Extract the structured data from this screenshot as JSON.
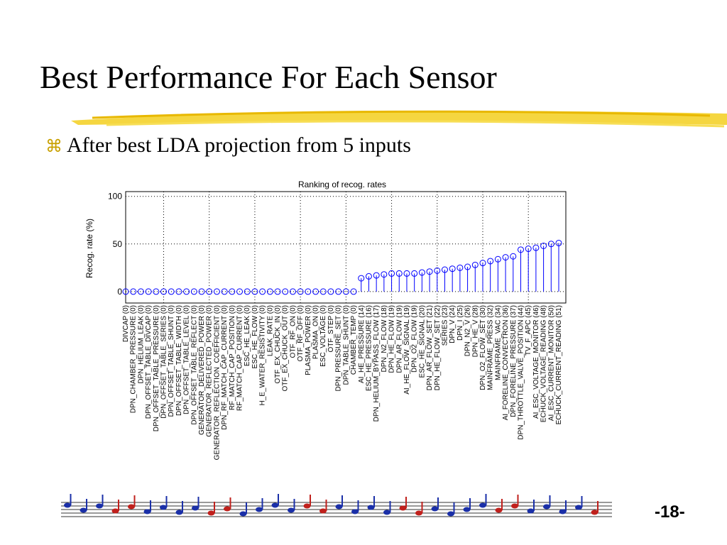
{
  "header": {
    "title": "Best Performance For Each Sensor"
  },
  "bullet": "After best LDA projection from 5 inputs",
  "page_number": "-18-",
  "chart_data": {
    "type": "stem",
    "title": "Ranking of recog. rates",
    "y_label": "Recog. rate (%)",
    "color": "#0000ff",
    "grid": true,
    "ylim": [
      -12,
      105
    ],
    "yticks": [
      0,
      50,
      100
    ],
    "categories": [
      "DIVCAP (0)",
      "DPN_CHAMBER_PRESSURE (0)",
      "DPN_HELIUM_LEAK (0)",
      "DPN_OFFSET_TABLE_DIVCAP (0)",
      "DPN_OFFSET_TABLE_PRESSURE (0)",
      "DPN_OFFSET_TABLE_SERIES (0)",
      "DPN_OFFSET_TABLE_SHUNT (0)",
      "DPN_OFFSET_TABLE_WIDTH (0)",
      "DPN_OFFSET_TABLE_LEVEL (0)",
      "DPN_OFFSET_TABLE_REFLECT (0)",
      "GENERATOR_DELIVERED_POWER (0)",
      "GENERATOR_REFLECTED_POWER (0)",
      "GENERATOR_REFLECTION_COEFFICIENT (0)",
      "DPN_RF_MATCH_CAP_CURRENT (0)",
      "RF_MATCH_CAP_POSITION (0)",
      "RF_MATCH_CAP_CURRENT (0)",
      "ESC_HE_LEAK (0)",
      "ESC_HE_FLOW (0)",
      "H_E_WATER_RESISTIVITY (0)",
      "LEAK_RATE (0)",
      "OTF_EX_CHUCK_IN (0)",
      "OTF_EX_CHUCK_OUT (0)",
      "OTF_RF_ON (0)",
      "OTF_RF_OFF (0)",
      "PLASMA_POWER (0)",
      "PLASMA_ON (0)",
      "ESC_VOLTAGE (0)",
      "OTF_STEP (0)",
      "DPN_PRESSURE_SET (0)",
      "DPN_TABLE_SHUNT (0)",
      "CHAMBER_TEMP (0)",
      "AI_HE_PRESSURE (14)",
      "ESC_HE_PRESSURE (16)",
      "DPN_HELIUM_BYPASS_FLOW (17)",
      "DPN_N2_FLOW (18)",
      "DPN_HE_FLOW (19)",
      "DPN_AR_FLOW (19)",
      "AI_HE_FLOW_SIGNAL (19)",
      "DPN_O2_FLOW (19)",
      "ESC_HE_SIGNAL (20)",
      "DPN_AR_FLOW_SET (21)",
      "DPN_HE_FLOW_SET (22)",
      "SERIES (23)",
      "DPN_V (24)",
      "DPN_I (25)",
      "DPN_N2_V (26)",
      "DPN_HE_V (28)",
      "DPN_O2_FLOW_SET (30)",
      "MAINFRAME_PRESS (32)",
      "MAINFRAME_VAC (34)",
      "AI_FORELINE_CONVECTRON (36)",
      "DPN_FORELINE_PRESSURE (37)",
      "DPN_THROTTLE_VALVE_POSITION (44)",
      "TV_F_APC (45)",
      "AI_ESC_VOLTAGE_MONITOR (46)",
      "ECHUCK_VOLTAGE_READING (48)",
      "AI_ESC_CURRENT_MONITOR (50)",
      "ECHUCK_CURRENT_READING (51)"
    ],
    "values": [
      0,
      0,
      0,
      0,
      0,
      0,
      0,
      0,
      0,
      0,
      0,
      0,
      0,
      0,
      0,
      0,
      0,
      0,
      0,
      0,
      0,
      0,
      0,
      0,
      0,
      0,
      0,
      0,
      0,
      0,
      0,
      14,
      16,
      17,
      18,
      19,
      19,
      19,
      19,
      20,
      21,
      22,
      23,
      24,
      25,
      26,
      28,
      30,
      32,
      34,
      36,
      37,
      44,
      45,
      46,
      48,
      50,
      51
    ]
  }
}
